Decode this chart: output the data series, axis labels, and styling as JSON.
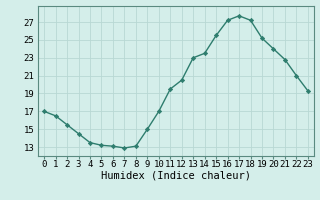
{
  "x": [
    0,
    1,
    2,
    3,
    4,
    5,
    6,
    7,
    8,
    9,
    10,
    11,
    12,
    13,
    14,
    15,
    16,
    17,
    18,
    19,
    20,
    21,
    22,
    23
  ],
  "y": [
    17,
    16.5,
    15.5,
    14.5,
    13.5,
    13.2,
    13.1,
    12.9,
    13.1,
    15,
    17,
    19.5,
    20.5,
    23,
    23.5,
    25.5,
    27.2,
    27.7,
    27.2,
    25.2,
    24,
    22.8,
    21,
    19.3
  ],
  "line_color": "#2e7d6e",
  "marker": "D",
  "marker_size": 2.2,
  "bg_color": "#d4eeea",
  "grid_color": "#b8d8d4",
  "xlabel": "Humidex (Indice chaleur)",
  "xlim": [
    -0.5,
    23.5
  ],
  "ylim": [
    12,
    28.8
  ],
  "yticks": [
    13,
    15,
    17,
    19,
    21,
    23,
    25,
    27
  ],
  "xticks": [
    0,
    1,
    2,
    3,
    4,
    5,
    6,
    7,
    8,
    9,
    10,
    11,
    12,
    13,
    14,
    15,
    16,
    17,
    18,
    19,
    20,
    21,
    22,
    23
  ],
  "tick_fontsize": 6.5,
  "xlabel_fontsize": 7.5,
  "linewidth": 1.0,
  "spine_color": "#5a8a80"
}
